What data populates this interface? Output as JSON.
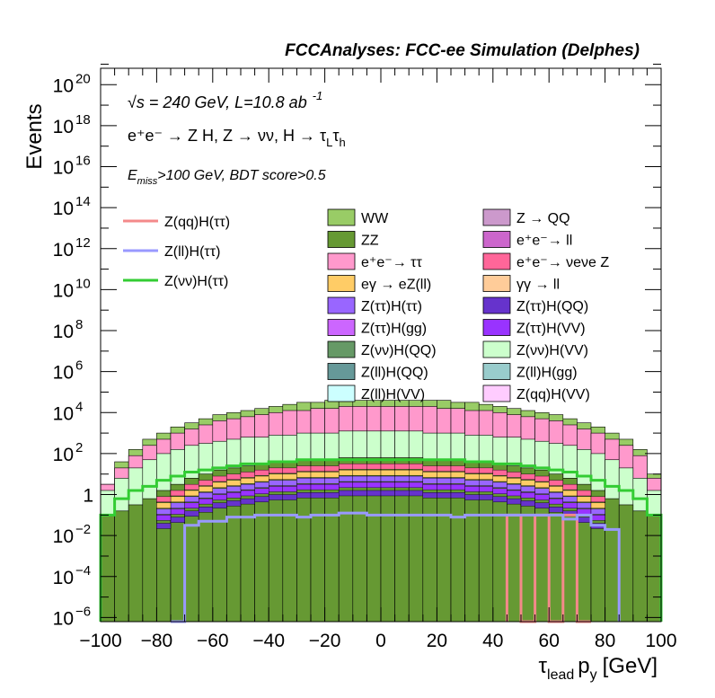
{
  "chart_data": {
    "type": "area",
    "title": "FCCAnalyses: FCC-ee Simulation (Delphes)",
    "xlabel": "τlead py [GeV]",
    "xlabel_parts": {
      "tau": "τ",
      "lead": "lead",
      "p": "p",
      "y": "y",
      "unit": "[GeV]"
    },
    "ylabel": "Events",
    "xlim": [
      -100,
      100
    ],
    "ylim_log10": [
      -6.2,
      20.8
    ],
    "log_y": true,
    "x_ticks": [
      "−100",
      "−80",
      "−60",
      "−40",
      "−20",
      "0",
      "20",
      "40",
      "60",
      "80",
      "100"
    ],
    "y_ticks": [
      {
        "exp": -6,
        "label": "10",
        "sup": "−6"
      },
      {
        "exp": -4,
        "label": "10",
        "sup": "−4"
      },
      {
        "exp": -2,
        "label": "10",
        "sup": "−2"
      },
      {
        "exp": 0,
        "label": "1",
        "sup": ""
      },
      {
        "exp": 2,
        "label": "10",
        "sup": "2"
      },
      {
        "exp": 4,
        "label": "10",
        "sup": "4"
      },
      {
        "exp": 6,
        "label": "10",
        "sup": "6"
      },
      {
        "exp": 8,
        "label": "10",
        "sup": "8"
      },
      {
        "exp": 10,
        "label": "10",
        "sup": "10"
      },
      {
        "exp": 12,
        "label": "10",
        "sup": "12"
      },
      {
        "exp": 14,
        "label": "10",
        "sup": "14"
      },
      {
        "exp": 16,
        "label": "10",
        "sup": "16"
      },
      {
        "exp": 18,
        "label": "10",
        "sup": "18"
      },
      {
        "exp": 20,
        "label": "10",
        "sup": "20"
      }
    ],
    "annotations": [
      "√s = 240 GeV, L=10.8 ab⁻¹",
      "e⁺e⁻ → Z H, Z → νν, H → τLτh",
      "Emiss>100 GeV, BDT score>0.5"
    ],
    "ann1": {
      "sqrt": "√",
      "s": "s = 240 GeV, L=10.8 ab",
      "sup": "-1"
    },
    "ann2": {
      "text": "e⁺e⁻ → Z H, Z  → νν, H → τ",
      "sub1": "L",
      "mid": "τ",
      "sub2": "h"
    },
    "ann3": {
      "E": "E",
      "sub": "miss",
      "rest": ">100 GeV, BDT score>0.5"
    },
    "line_legend": [
      {
        "name": "Z(qq)H(ττ)",
        "color": "#f4898a"
      },
      {
        "name": "Z(ll)H(ττ)",
        "color": "#9999ff"
      },
      {
        "name": "Z(νν)H(ττ)",
        "color": "#33cc33"
      }
    ],
    "fill_legend": [
      {
        "name": "WW",
        "color": "#99cc66"
      },
      {
        "name": "Z → QQ",
        "color": "#cc99cc"
      },
      {
        "name": "ZZ",
        "color": "#669933"
      },
      {
        "name": "e⁺e⁻→ ll",
        "color": "#cc66cc"
      },
      {
        "name": "e⁺e⁻→ ττ",
        "color": "#ff99cc"
      },
      {
        "name": "e⁺e⁻→ νeνe Z",
        "color": "#ff6699"
      },
      {
        "name": "eγ → eZ(ll)",
        "color": "#ffcc66"
      },
      {
        "name": "γγ → ll",
        "color": "#ffcc99"
      },
      {
        "name": "Z(ττ)H(ττ)",
        "color": "#9966ff"
      },
      {
        "name": "Z(ττ)H(QQ)",
        "color": "#6633cc"
      },
      {
        "name": "Z(ττ)H(gg)",
        "color": "#cc66ff"
      },
      {
        "name": "Z(ττ)H(VV)",
        "color": "#9933ff"
      },
      {
        "name": "Z(νν)H(QQ)",
        "color": "#669966"
      },
      {
        "name": "Z(νν)H(VV)",
        "color": "#ccffcc"
      },
      {
        "name": "Z(ll)H(QQ)",
        "color": "#669999"
      },
      {
        "name": "Z(ll)H(gg)",
        "color": "#99cccc"
      },
      {
        "name": "Z(ll)H(VV)",
        "color": "#ccffff"
      },
      {
        "name": "Z(qq)H(VV)",
        "color": "#ffccff"
      }
    ],
    "bins": 40,
    "stack_approx_log10": {
      "note_series_order": [
        "WW",
        "ZZ",
        "e⁺e⁻→ ττ",
        "e⁺e⁻→ νeνe Z",
        "rest"
      ],
      "WW_total": [
        0.5,
        1.6,
        2.2,
        2.7,
        3.0,
        3.3,
        3.5,
        3.7,
        3.9,
        4.0,
        4.1,
        4.2,
        4.3,
        4.4,
        4.5,
        4.5,
        4.6,
        4.6,
        4.6,
        4.6,
        4.6,
        4.6,
        4.6,
        4.6,
        4.6,
        4.5,
        4.5,
        4.4,
        4.3,
        4.2,
        4.1,
        4.0,
        3.9,
        3.7,
        3.5,
        3.3,
        3.0,
        2.7,
        2.2,
        1.0
      ],
      "ZZ_top": [
        0.5,
        1.3,
        1.9,
        2.4,
        2.7,
        3.0,
        3.2,
        3.4,
        3.6,
        3.7,
        3.8,
        3.9,
        4.0,
        4.1,
        4.1,
        4.2,
        4.2,
        4.3,
        4.3,
        4.3,
        4.3,
        4.3,
        4.3,
        4.3,
        4.2,
        4.2,
        4.1,
        4.1,
        4.0,
        3.9,
        3.8,
        3.7,
        3.6,
        3.4,
        3.2,
        3.0,
        2.7,
        2.4,
        1.9,
        0.8
      ],
      "tautau_top": [
        0.2,
        0.8,
        1.3,
        1.7,
        2.0,
        2.2,
        2.4,
        2.5,
        2.6,
        2.7,
        2.8,
        2.8,
        2.9,
        2.9,
        3.0,
        3.0,
        3.0,
        3.1,
        3.1,
        3.1,
        3.1,
        3.1,
        3.1,
        3.0,
        3.0,
        3.0,
        2.9,
        2.9,
        2.8,
        2.8,
        2.7,
        2.6,
        2.5,
        2.4,
        2.2,
        2.0,
        1.7,
        1.3,
        0.8,
        0.2
      ],
      "ZZ_bottom_top": [
        -1.0,
        -0.8,
        -0.5,
        -0.2,
        0.2,
        0.5,
        0.8,
        1.0,
        1.2,
        1.3,
        1.4,
        1.5,
        1.6,
        1.6,
        1.7,
        1.7,
        1.7,
        1.8,
        1.8,
        1.8,
        1.8,
        1.8,
        1.8,
        1.7,
        1.7,
        1.7,
        1.6,
        1.6,
        1.5,
        1.4,
        1.3,
        1.2,
        1.0,
        0.8,
        0.5,
        0.2,
        -0.2,
        -0.5,
        -0.8,
        -1.0
      ]
    },
    "signal_lines_log10": {
      "Z(νν)H(ττ)": [
        -1.0,
        -0.2,
        0.2,
        0.4,
        0.7,
        0.9,
        1.1,
        1.2,
        1.3,
        1.4,
        1.5,
        1.5,
        1.6,
        1.6,
        1.7,
        1.7,
        1.7,
        1.7,
        1.7,
        1.7,
        1.7,
        1.7,
        1.7,
        1.7,
        1.7,
        1.7,
        1.6,
        1.6,
        1.5,
        1.5,
        1.4,
        1.3,
        1.2,
        1.1,
        0.9,
        0.7,
        0.4,
        0.2,
        -0.2,
        -1.0
      ],
      "Z(ll)H(ττ)": [
        null,
        null,
        null,
        null,
        null,
        -6.2,
        -1.5,
        -1.3,
        -1.3,
        -1.1,
        -1.1,
        -1.0,
        -1.0,
        -1.0,
        -1.1,
        -1.0,
        -1.0,
        -0.9,
        -0.9,
        -1.0,
        -1.0,
        -1.0,
        -1.0,
        -1.0,
        -1.0,
        -1.1,
        -1.0,
        -1.0,
        -1.0,
        -1.0,
        -1.0,
        -1.0,
        -1.0,
        -1.2,
        -1.0,
        -1.5,
        -1.7,
        null,
        null,
        null
      ],
      "Z(qq)H(ττ)": [
        null,
        null,
        null,
        null,
        null,
        null,
        null,
        null,
        null,
        null,
        null,
        null,
        null,
        null,
        null,
        null,
        null,
        null,
        null,
        null,
        null,
        null,
        null,
        null,
        null,
        null,
        null,
        null,
        null,
        -1.0,
        -6.2,
        -1.0,
        -6.2,
        -1.0,
        -6.2,
        null,
        null,
        null,
        null,
        null
      ]
    }
  }
}
